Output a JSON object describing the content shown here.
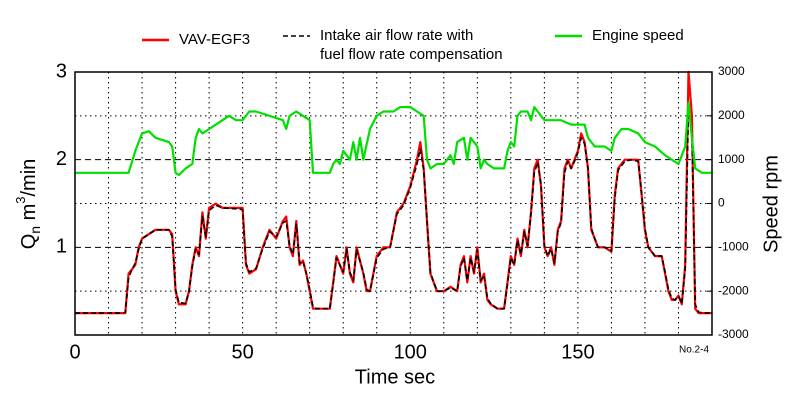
{
  "chart_data": {
    "type": "line",
    "xlabel": "Time  sec",
    "ylabel": {
      "base": "Q",
      "sub": "n",
      "unit": " m",
      "sup": "3",
      "rest": "/min"
    },
    "y2label": "Speed  rpm",
    "annotation": "No.2-4",
    "xlim": [
      0,
      190
    ],
    "xticks": [
      0,
      50,
      100,
      150
    ],
    "x_minor_grid": [
      10,
      20,
      30,
      40,
      60,
      70,
      80,
      90,
      110,
      120,
      130,
      140,
      160,
      170,
      180
    ],
    "ylim": [
      0,
      3
    ],
    "yticks": [
      1,
      2,
      3
    ],
    "y_minor_grid": [
      0.5,
      1.5,
      2.5
    ],
    "y2lim": [
      -3000,
      3000
    ],
    "y2ticks": [
      -3000,
      -2000,
      -1000,
      0,
      1000,
      2000,
      3000
    ],
    "grid": true,
    "legend": "top",
    "series": [
      {
        "name": "VAV-EGF3",
        "color": "#ff0000",
        "dash": false,
        "x": [
          0,
          14,
          15,
          16,
          17,
          18,
          19,
          20,
          22,
          24,
          28,
          29,
          30,
          31,
          33,
          34,
          35,
          36,
          37,
          38,
          39,
          40,
          42,
          44,
          48,
          50,
          51,
          52,
          54,
          56,
          58,
          60,
          62,
          63,
          64,
          65,
          66,
          67,
          68,
          69,
          70,
          71,
          72,
          76,
          77,
          78,
          80,
          81,
          82,
          83,
          84,
          86,
          87,
          88,
          90,
          92,
          94,
          96,
          98,
          100,
          102,
          103,
          104,
          105,
          106,
          107,
          108,
          110,
          112,
          114,
          115,
          116,
          117,
          118,
          119,
          120,
          121,
          122,
          123,
          124,
          126,
          128,
          129,
          130,
          131,
          132,
          133,
          134,
          135,
          136,
          137,
          138,
          139,
          140,
          141,
          142,
          143,
          144,
          145,
          146,
          147,
          148,
          149,
          150,
          151,
          152,
          153,
          154,
          155,
          156,
          158,
          160,
          161,
          162,
          164,
          166,
          168,
          169,
          170,
          171,
          173,
          175,
          176,
          177,
          178,
          179,
          180,
          181,
          182,
          183,
          184,
          185,
          186,
          188,
          190
        ],
        "values": [
          0.25,
          0.25,
          0.25,
          0.7,
          0.75,
          0.8,
          1.0,
          1.1,
          1.15,
          1.2,
          1.2,
          1.15,
          0.5,
          0.35,
          0.35,
          0.5,
          0.8,
          1.0,
          0.9,
          1.4,
          1.1,
          1.45,
          1.5,
          1.45,
          1.45,
          1.45,
          0.8,
          0.7,
          0.75,
          1.0,
          1.2,
          1.1,
          1.3,
          1.35,
          1.0,
          0.9,
          1.3,
          0.8,
          0.85,
          0.7,
          0.5,
          0.3,
          0.3,
          0.3,
          0.6,
          0.9,
          0.7,
          1.0,
          0.7,
          0.6,
          1.0,
          0.7,
          0.5,
          0.5,
          0.9,
          1.0,
          1.0,
          1.4,
          1.5,
          1.7,
          2.0,
          2.2,
          1.9,
          1.3,
          0.7,
          0.6,
          0.5,
          0.5,
          0.55,
          0.5,
          0.8,
          0.9,
          0.6,
          0.9,
          0.7,
          1.0,
          0.6,
          0.7,
          0.4,
          0.35,
          0.3,
          0.3,
          0.6,
          0.9,
          0.8,
          1.1,
          0.9,
          1.2,
          1.0,
          1.4,
          1.9,
          2.0,
          1.7,
          1.0,
          0.9,
          1.0,
          0.8,
          1.2,
          1.3,
          1.9,
          2.0,
          1.9,
          2.0,
          2.1,
          2.3,
          2.2,
          1.9,
          1.2,
          1.1,
          1.0,
          1.0,
          0.95,
          1.6,
          1.9,
          2.0,
          2.0,
          2.0,
          1.6,
          1.2,
          1.0,
          0.9,
          0.9,
          0.7,
          0.5,
          0.4,
          0.4,
          0.45,
          0.35,
          0.8,
          3.0,
          2.5,
          0.3,
          0.25,
          0.25,
          0.25
        ]
      },
      {
        "name": "Intake air flow rate with\nfuel flow rate compensation",
        "color": "#000000",
        "dash": true,
        "x": [
          0,
          14,
          15,
          16,
          17,
          18,
          19,
          20,
          22,
          24,
          28,
          29,
          30,
          31,
          33,
          34,
          35,
          36,
          37,
          38,
          39,
          40,
          42,
          44,
          48,
          50,
          51,
          52,
          54,
          56,
          58,
          60,
          62,
          63,
          64,
          65,
          66,
          67,
          68,
          69,
          70,
          71,
          72,
          76,
          77,
          78,
          80,
          81,
          82,
          83,
          84,
          86,
          87,
          88,
          90,
          92,
          94,
          96,
          98,
          100,
          102,
          103,
          104,
          105,
          106,
          107,
          108,
          110,
          112,
          114,
          115,
          116,
          117,
          118,
          119,
          120,
          121,
          122,
          123,
          124,
          126,
          128,
          129,
          130,
          131,
          132,
          133,
          134,
          135,
          136,
          137,
          138,
          139,
          140,
          141,
          142,
          143,
          144,
          145,
          146,
          147,
          148,
          149,
          150,
          151,
          152,
          153,
          154,
          155,
          156,
          158,
          160,
          161,
          162,
          164,
          166,
          168,
          169,
          170,
          171,
          173,
          175,
          176,
          177,
          178,
          179,
          180,
          181,
          182,
          183,
          184,
          185,
          186,
          188,
          190
        ],
        "values": [
          0.25,
          0.25,
          0.26,
          0.65,
          0.75,
          0.82,
          0.98,
          1.1,
          1.15,
          1.2,
          1.2,
          1.12,
          0.52,
          0.37,
          0.36,
          0.5,
          0.78,
          0.98,
          0.92,
          1.35,
          1.12,
          1.42,
          1.48,
          1.45,
          1.44,
          1.43,
          0.82,
          0.72,
          0.76,
          0.98,
          1.18,
          1.12,
          1.28,
          1.3,
          1.02,
          0.92,
          1.26,
          0.82,
          0.84,
          0.7,
          0.52,
          0.32,
          0.3,
          0.3,
          0.58,
          0.88,
          0.72,
          0.98,
          0.72,
          0.62,
          0.97,
          0.72,
          0.52,
          0.5,
          0.88,
          0.98,
          1.0,
          1.38,
          1.48,
          1.68,
          1.95,
          2.12,
          1.88,
          1.3,
          0.72,
          0.6,
          0.5,
          0.5,
          0.54,
          0.5,
          0.78,
          0.88,
          0.62,
          0.88,
          0.72,
          0.97,
          0.62,
          0.68,
          0.42,
          0.36,
          0.3,
          0.3,
          0.58,
          0.88,
          0.8,
          1.08,
          0.92,
          1.18,
          1.02,
          1.38,
          1.85,
          1.97,
          1.72,
          1.02,
          0.9,
          0.98,
          0.82,
          1.18,
          1.28,
          1.85,
          1.98,
          1.9,
          1.98,
          2.08,
          2.25,
          2.18,
          1.9,
          1.22,
          1.1,
          1.0,
          1.0,
          0.96,
          1.55,
          1.88,
          1.98,
          2.0,
          1.98,
          1.62,
          1.22,
          1.0,
          0.9,
          0.9,
          0.72,
          0.52,
          0.42,
          0.4,
          0.44,
          0.36,
          0.75,
          2.6,
          2.3,
          0.35,
          0.26,
          0.25,
          0.25
        ]
      },
      {
        "name": "Engine speed",
        "color": "#00e000",
        "dash": false,
        "axis": "y2",
        "x": [
          0,
          14,
          16,
          18,
          20,
          22,
          24,
          28,
          29,
          30,
          31,
          33,
          35,
          36,
          37,
          38,
          40,
          42,
          44,
          46,
          48,
          50,
          52,
          54,
          58,
          62,
          63,
          64,
          66,
          68,
          70,
          71,
          72,
          76,
          77,
          78,
          79,
          80,
          82,
          83,
          84,
          85,
          86,
          88,
          90,
          92,
          95,
          97,
          100,
          102,
          104,
          105,
          106,
          108,
          110,
          112,
          113,
          114,
          116,
          117,
          118,
          120,
          121,
          122,
          123,
          125,
          128,
          129,
          130,
          131,
          132,
          133,
          135,
          136,
          137,
          138,
          140,
          145,
          148,
          150,
          152,
          153,
          155,
          158,
          160,
          161,
          163,
          165,
          168,
          170,
          173,
          176,
          178,
          180,
          181,
          182,
          183,
          184,
          185,
          187,
          190
        ],
        "values": [
          700,
          700,
          700,
          1200,
          1600,
          1650,
          1500,
          1400,
          1300,
          700,
          650,
          800,
          900,
          1500,
          1700,
          1600,
          1700,
          1800,
          1900,
          2000,
          1900,
          1900,
          2100,
          2100,
          2000,
          1900,
          1700,
          2000,
          2100,
          2000,
          1900,
          700,
          700,
          700,
          900,
          1000,
          900,
          1200,
          1000,
          1400,
          1000,
          1500,
          1000,
          1700,
          2000,
          2100,
          2100,
          2200,
          2200,
          2100,
          2000,
          1000,
          800,
          900,
          900,
          1100,
          900,
          1400,
          1500,
          1000,
          1500,
          1300,
          800,
          1000,
          900,
          800,
          800,
          1200,
          1400,
          1300,
          2000,
          2100,
          2100,
          1900,
          2200,
          2100,
          1900,
          1900,
          1800,
          1800,
          1800,
          1500,
          1300,
          1300,
          1200,
          1500,
          1700,
          1700,
          1600,
          1400,
          1300,
          1100,
          1000,
          900,
          1100,
          1300,
          2300,
          1500,
          800,
          700,
          700
        ]
      }
    ]
  }
}
